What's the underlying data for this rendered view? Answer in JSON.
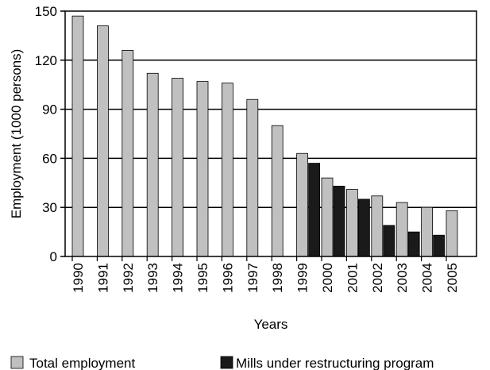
{
  "chart_data": {
    "type": "bar",
    "xlabel": "Years",
    "ylabel": "Employment (1000 persons)",
    "ylim": [
      0,
      150
    ],
    "yticks": [
      0,
      30,
      60,
      90,
      120,
      150
    ],
    "grid": "horizontal",
    "categories": [
      "1990",
      "1991",
      "1992",
      "1993",
      "1994",
      "1995",
      "1996",
      "1997",
      "1998",
      "1999",
      "2000",
      "2001",
      "2002",
      "2003",
      "2004",
      "2005"
    ],
    "series": [
      {
        "name": "Total employment",
        "color": "#c0c0c0",
        "values": [
          147,
          141,
          126,
          112,
          109,
          107,
          106,
          96,
          80,
          63,
          48,
          41,
          37,
          33,
          30,
          28
        ]
      },
      {
        "name": "Mills under restructuring program",
        "color": "#1a1a1a",
        "values": [
          null,
          null,
          null,
          null,
          null,
          null,
          null,
          null,
          null,
          57,
          43,
          35,
          19,
          15,
          13,
          null
        ]
      }
    ],
    "legend_position": "bottom"
  }
}
